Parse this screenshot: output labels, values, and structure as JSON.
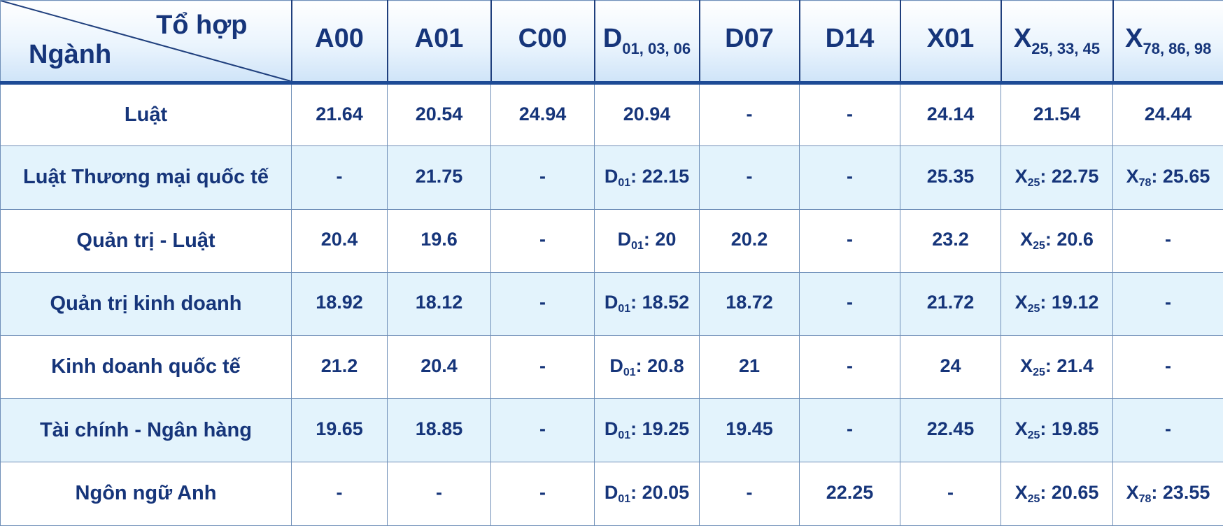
{
  "header": {
    "corner_top": "Tổ hợp",
    "corner_bottom": "Ngành",
    "columns": [
      {
        "base": "A00",
        "sub": ""
      },
      {
        "base": "A01",
        "sub": ""
      },
      {
        "base": "C00",
        "sub": ""
      },
      {
        "base": "D",
        "sub": "01, 03, 06"
      },
      {
        "base": "D07",
        "sub": ""
      },
      {
        "base": "D14",
        "sub": ""
      },
      {
        "base": "X01",
        "sub": ""
      },
      {
        "base": "X",
        "sub": "25, 33, 45"
      },
      {
        "base": "X",
        "sub": "78, 86, 98"
      }
    ]
  },
  "rows": [
    {
      "major": "Luật",
      "cells": [
        {
          "prefix": "",
          "sub": "",
          "value": "21.64"
        },
        {
          "prefix": "",
          "sub": "",
          "value": "20.54"
        },
        {
          "prefix": "",
          "sub": "",
          "value": "24.94"
        },
        {
          "prefix": "",
          "sub": "",
          "value": "20.94"
        },
        {
          "prefix": "",
          "sub": "",
          "value": "-"
        },
        {
          "prefix": "",
          "sub": "",
          "value": "-"
        },
        {
          "prefix": "",
          "sub": "",
          "value": "24.14"
        },
        {
          "prefix": "",
          "sub": "",
          "value": "21.54"
        },
        {
          "prefix": "",
          "sub": "",
          "value": "24.44"
        }
      ]
    },
    {
      "major": "Luật Thương mại quốc tế",
      "cells": [
        {
          "prefix": "",
          "sub": "",
          "value": "-"
        },
        {
          "prefix": "",
          "sub": "",
          "value": "21.75"
        },
        {
          "prefix": "",
          "sub": "",
          "value": "-"
        },
        {
          "prefix": "D",
          "sub": "01",
          "value": ": 22.15"
        },
        {
          "prefix": "",
          "sub": "",
          "value": "-"
        },
        {
          "prefix": "",
          "sub": "",
          "value": "-"
        },
        {
          "prefix": "",
          "sub": "",
          "value": "25.35"
        },
        {
          "prefix": "X",
          "sub": "25",
          "value": ": 22.75"
        },
        {
          "prefix": "X",
          "sub": "78",
          "value": ": 25.65"
        }
      ]
    },
    {
      "major": "Quản trị - Luật",
      "cells": [
        {
          "prefix": "",
          "sub": "",
          "value": "20.4"
        },
        {
          "prefix": "",
          "sub": "",
          "value": "19.6"
        },
        {
          "prefix": "",
          "sub": "",
          "value": "-"
        },
        {
          "prefix": "D",
          "sub": "01",
          "value": ": 20"
        },
        {
          "prefix": "",
          "sub": "",
          "value": "20.2"
        },
        {
          "prefix": "",
          "sub": "",
          "value": "-"
        },
        {
          "prefix": "",
          "sub": "",
          "value": "23.2"
        },
        {
          "prefix": "X",
          "sub": "25",
          "value": ": 20.6"
        },
        {
          "prefix": "",
          "sub": "",
          "value": "-"
        }
      ]
    },
    {
      "major": "Quản trị kinh doanh",
      "cells": [
        {
          "prefix": "",
          "sub": "",
          "value": "18.92"
        },
        {
          "prefix": "",
          "sub": "",
          "value": "18.12"
        },
        {
          "prefix": "",
          "sub": "",
          "value": "-"
        },
        {
          "prefix": "D",
          "sub": "01",
          "value": ": 18.52"
        },
        {
          "prefix": "",
          "sub": "",
          "value": "18.72"
        },
        {
          "prefix": "",
          "sub": "",
          "value": "-"
        },
        {
          "prefix": "",
          "sub": "",
          "value": "21.72"
        },
        {
          "prefix": "X",
          "sub": "25",
          "value": ": 19.12"
        },
        {
          "prefix": "",
          "sub": "",
          "value": "-"
        }
      ]
    },
    {
      "major": "Kinh doanh quốc tế",
      "cells": [
        {
          "prefix": "",
          "sub": "",
          "value": "21.2"
        },
        {
          "prefix": "",
          "sub": "",
          "value": "20.4"
        },
        {
          "prefix": "",
          "sub": "",
          "value": "-"
        },
        {
          "prefix": "D",
          "sub": "01",
          "value": ": 20.8"
        },
        {
          "prefix": "",
          "sub": "",
          "value": "21"
        },
        {
          "prefix": "",
          "sub": "",
          "value": "-"
        },
        {
          "prefix": "",
          "sub": "",
          "value": "24"
        },
        {
          "prefix": "X",
          "sub": "25",
          "value": ": 21.4"
        },
        {
          "prefix": "",
          "sub": "",
          "value": "-"
        }
      ]
    },
    {
      "major": "Tài chính - Ngân hàng",
      "cells": [
        {
          "prefix": "",
          "sub": "",
          "value": "19.65"
        },
        {
          "prefix": "",
          "sub": "",
          "value": "18.85"
        },
        {
          "prefix": "",
          "sub": "",
          "value": "-"
        },
        {
          "prefix": "D",
          "sub": "01",
          "value": ": 19.25"
        },
        {
          "prefix": "",
          "sub": "",
          "value": "19.45"
        },
        {
          "prefix": "",
          "sub": "",
          "value": "-"
        },
        {
          "prefix": "",
          "sub": "",
          "value": "22.45"
        },
        {
          "prefix": "X",
          "sub": "25",
          "value": ": 19.85"
        },
        {
          "prefix": "",
          "sub": "",
          "value": "-"
        }
      ]
    },
    {
      "major": "Ngôn ngữ Anh",
      "cells": [
        {
          "prefix": "",
          "sub": "",
          "value": "-"
        },
        {
          "prefix": "",
          "sub": "",
          "value": "-"
        },
        {
          "prefix": "",
          "sub": "",
          "value": "-"
        },
        {
          "prefix": "D",
          "sub": "01",
          "value": ": 20.05"
        },
        {
          "prefix": "",
          "sub": "",
          "value": "-"
        },
        {
          "prefix": "",
          "sub": "",
          "value": "22.25"
        },
        {
          "prefix": "",
          "sub": "",
          "value": "-"
        },
        {
          "prefix": "X",
          "sub": "25",
          "value": ": 20.65"
        },
        {
          "prefix": "X",
          "sub": "78",
          "value": ": 23.55"
        }
      ]
    }
  ]
}
